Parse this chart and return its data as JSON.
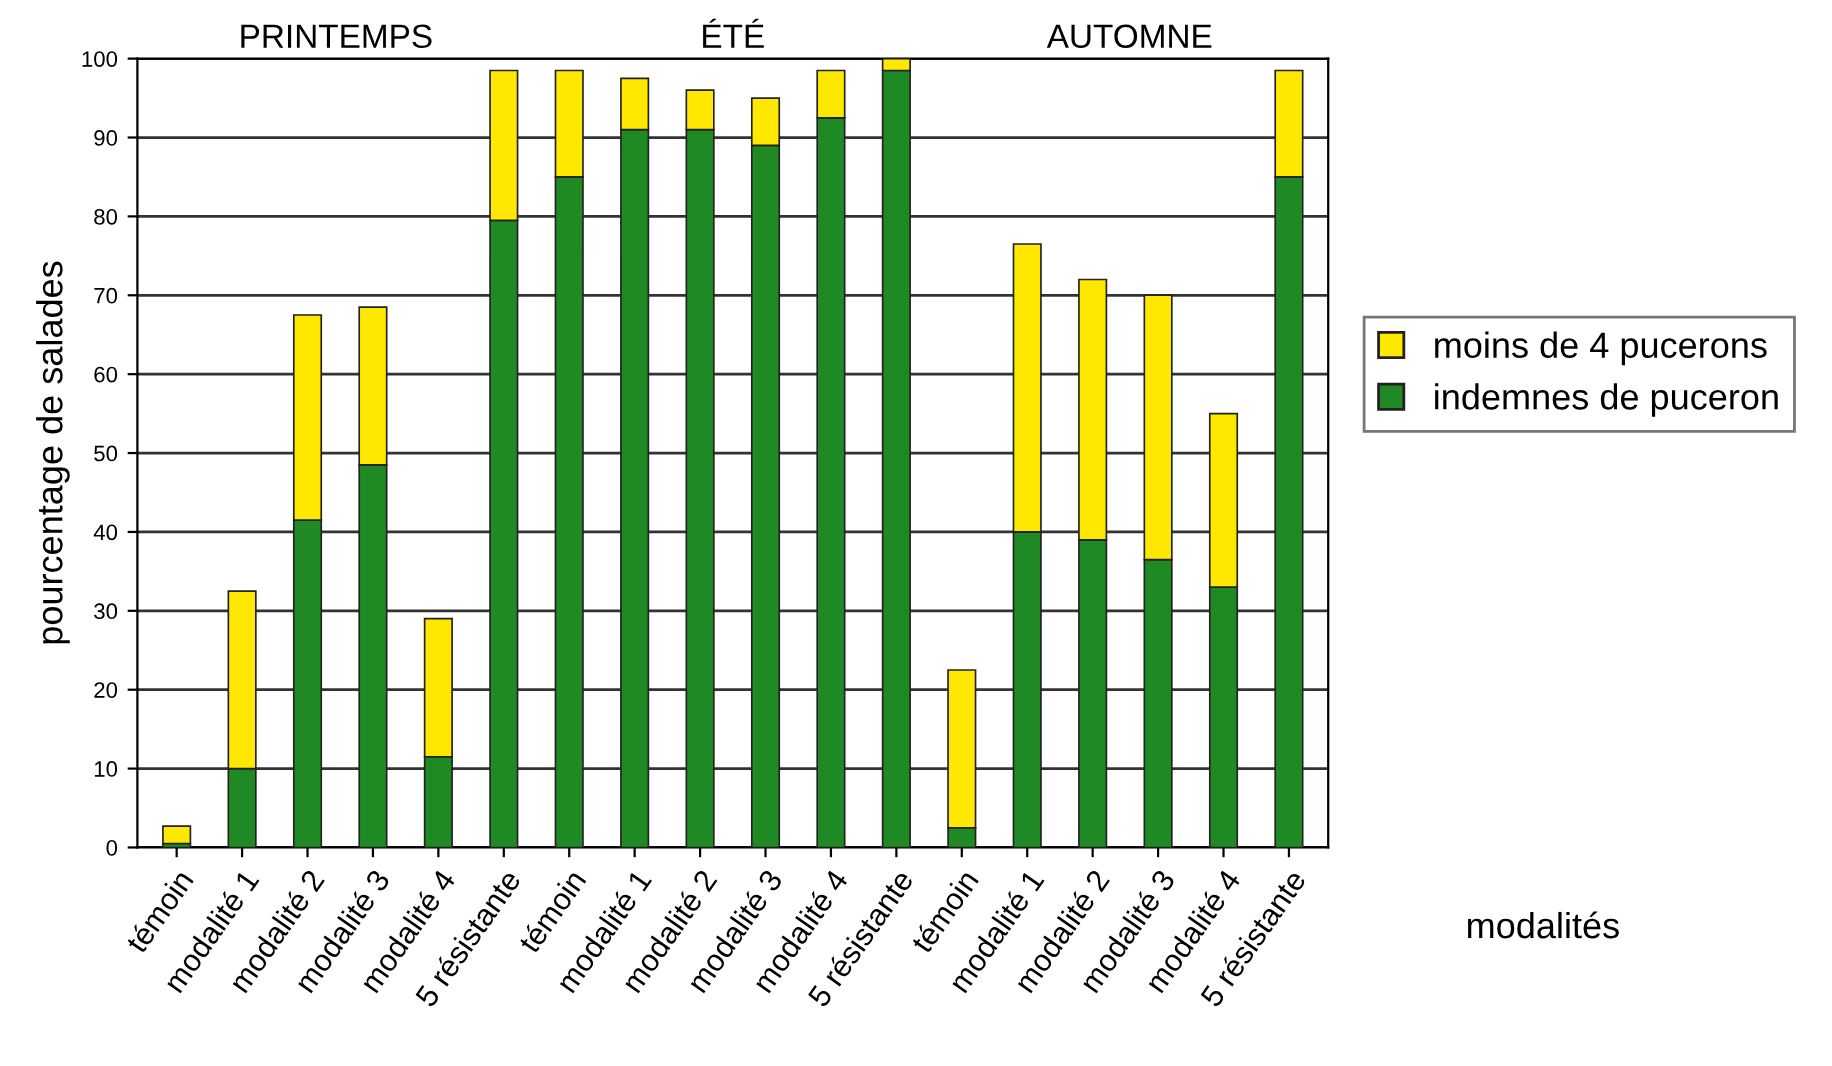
{
  "chart_data": {
    "type": "bar",
    "stacked": true,
    "xlabel": "modalités",
    "ylabel": "pourcentage de salades",
    "annotations": [
      "PRINTEMPS",
      "ÉTÉ",
      "AUTOMNE"
    ],
    "categories": [
      "témoin",
      "modalité 1",
      "modalité 2",
      "modalité 3",
      "modalité 4",
      "5 résistante",
      "témoin",
      "modalité 1",
      "modalité 2",
      "modalité 3",
      "modalité 4",
      "5 résistante",
      "témoin",
      "modalité 1",
      "modalité 2",
      "modalité 3",
      "modalité 4",
      "5 résistante"
    ],
    "series": [
      {
        "name": "indemnes de puceron",
        "color": "#1f8a23",
        "values": [
          0.5,
          10,
          41.5,
          48.5,
          11.5,
          79.5,
          85,
          91,
          91,
          89,
          92.5,
          98.5,
          2.5,
          40,
          39,
          36.5,
          33,
          85
        ]
      },
      {
        "name": "moins de 4 pucerons",
        "color": "#ffe800",
        "values": [
          2.2,
          22.5,
          26,
          20,
          17.5,
          19,
          13.5,
          6.5,
          5,
          6,
          6,
          1.5,
          20,
          36.5,
          33,
          33.5,
          22,
          13.5
        ]
      }
    ],
    "ylim": [
      0,
      100
    ],
    "yticks": [
      0,
      10,
      20,
      30,
      40,
      50,
      60,
      70,
      80,
      90,
      100
    ],
    "grid": "y",
    "legend": "right"
  }
}
